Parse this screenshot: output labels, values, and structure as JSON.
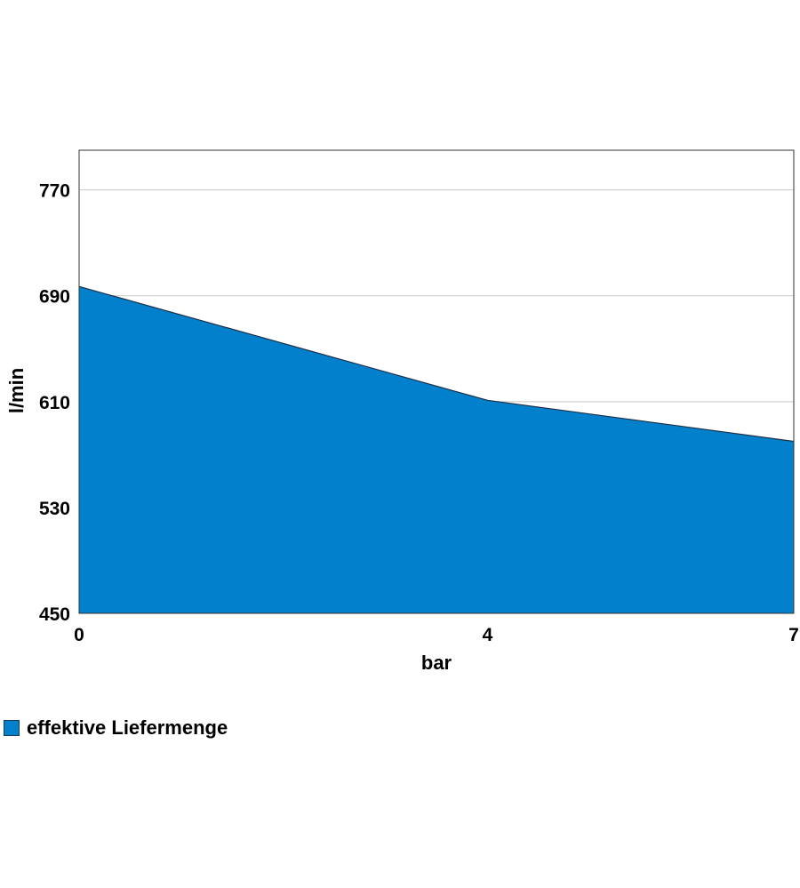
{
  "chart_data": {
    "type": "area",
    "title": "",
    "xlabel": "bar",
    "ylabel": "l/min",
    "x_ticks": [
      "0",
      "4",
      "7"
    ],
    "y_ticks": [
      "450",
      "530",
      "610",
      "690",
      "770"
    ],
    "xlim": [
      0,
      7
    ],
    "ylim": [
      450,
      800
    ],
    "grid": "horizontal",
    "legend_position": "bottom-left",
    "series": [
      {
        "name": "effektive Liefermenge",
        "color": "#0380cc",
        "x": [
          0,
          4,
          7
        ],
        "values": [
          697,
          611,
          580
        ]
      }
    ]
  }
}
